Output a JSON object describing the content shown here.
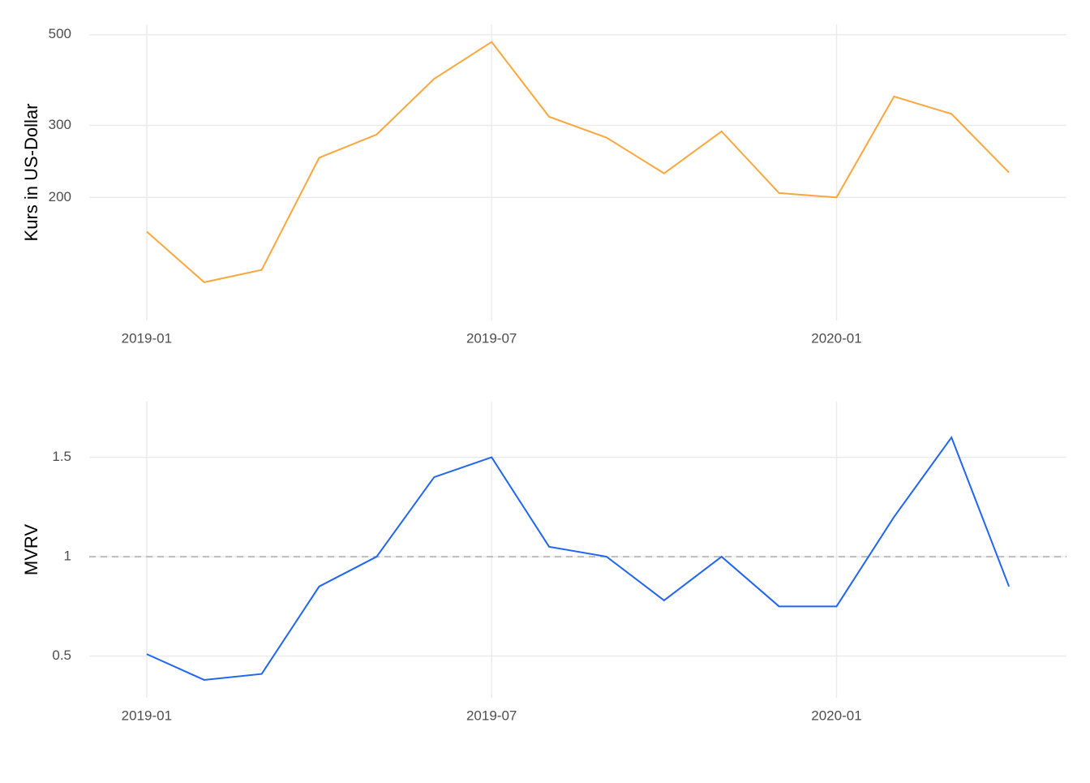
{
  "chart_data": [
    {
      "type": "line",
      "ylabel": "Kurs in US-Dollar",
      "log_y": true,
      "grid": true,
      "color": "#f9a73e",
      "x": [
        "2019-01",
        "2019-02",
        "2019-03",
        "2019-04",
        "2019-05",
        "2019-06",
        "2019-07",
        "2019-08",
        "2019-09",
        "2019-10",
        "2019-11",
        "2019-12",
        "2020-01",
        "2020-02",
        "2020-03",
        "2020-04"
      ],
      "values": [
        165,
        124,
        133,
        250,
        285,
        390,
        480,
        315,
        280,
        229,
        290,
        205,
        200,
        353,
        320,
        230
      ],
      "xlim": [
        "2018-12",
        "2020-05"
      ],
      "xticks": [
        "2019-01",
        "2019-07",
        "2020-01"
      ],
      "ylim": [
        100,
        530
      ],
      "yticks": [
        200,
        300,
        500
      ]
    },
    {
      "type": "line",
      "ylabel": "MVRV",
      "log_y": false,
      "grid": true,
      "color": "#2166f0",
      "x": [
        "2019-01",
        "2019-02",
        "2019-03",
        "2019-04",
        "2019-05",
        "2019-06",
        "2019-07",
        "2019-08",
        "2019-09",
        "2019-10",
        "2019-11",
        "2019-12",
        "2020-01",
        "2020-02",
        "2020-03",
        "2020-04"
      ],
      "values": [
        0.51,
        0.38,
        0.41,
        0.85,
        1.0,
        1.4,
        1.5,
        1.05,
        1.0,
        0.78,
        1.0,
        0.75,
        0.75,
        1.2,
        1.6,
        0.85
      ],
      "xlim": [
        "2018-12",
        "2020-05"
      ],
      "xticks": [
        "2019-01",
        "2019-07",
        "2020-01"
      ],
      "ylim": [
        0.29,
        1.78
      ],
      "yticks": [
        0.5,
        1.0,
        1.5
      ],
      "hline": 1
    }
  ]
}
